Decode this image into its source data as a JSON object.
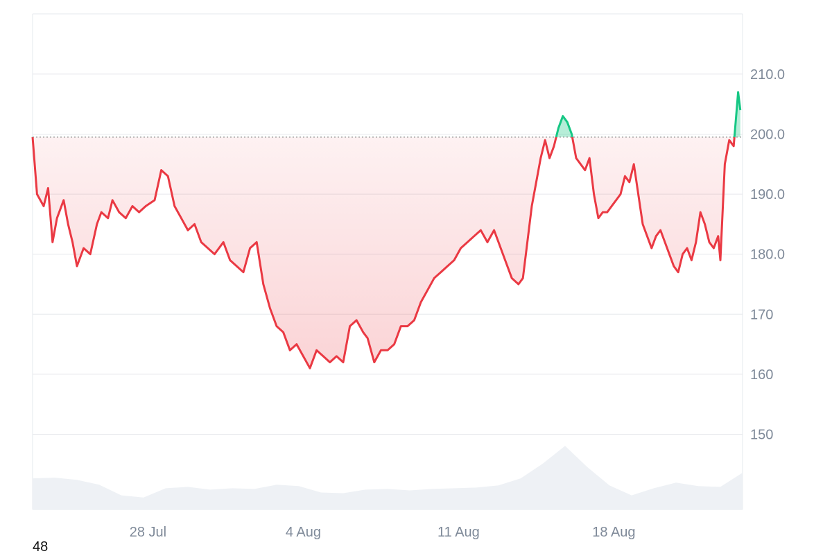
{
  "footer_text": "48",
  "chart_data": {
    "type": "line",
    "title": "",
    "xlabel": "",
    "ylabel": "",
    "ylim": [
      137.5,
      220
    ],
    "y_ticks": [
      210,
      200,
      190,
      180,
      170,
      160,
      150
    ],
    "y_tick_labels": [
      "210.0",
      "200.0",
      "190.0",
      "180.0",
      "170",
      "160",
      "150"
    ],
    "x_range": [
      0,
      31
    ],
    "x_ticks": [
      {
        "x": 5.2,
        "label": "28 Jul"
      },
      {
        "x": 12.2,
        "label": "4 Aug"
      },
      {
        "x": 19.2,
        "label": "11 Aug"
      },
      {
        "x": 26.2,
        "label": "18 Aug"
      }
    ],
    "baseline": 199.5,
    "grid": true,
    "colors": {
      "up": "#16c784",
      "down": "#ea3943",
      "grid": "#e6e8ec",
      "volume": "#eef1f5",
      "baseline": "#7a7a7a",
      "tick_text": "#7f8a99"
    },
    "series": [
      {
        "values": [
          [
            0.0,
            199.5
          ],
          [
            0.2,
            190
          ],
          [
            0.5,
            188
          ],
          [
            0.7,
            191
          ],
          [
            0.9,
            182
          ],
          [
            1.1,
            186
          ],
          [
            1.4,
            189
          ],
          [
            1.6,
            185
          ],
          [
            1.8,
            182
          ],
          [
            2.0,
            178
          ],
          [
            2.3,
            181
          ],
          [
            2.6,
            180
          ],
          [
            2.9,
            185
          ],
          [
            3.1,
            187
          ],
          [
            3.4,
            186
          ],
          [
            3.6,
            189
          ],
          [
            3.9,
            187
          ],
          [
            4.2,
            186
          ],
          [
            4.5,
            188
          ],
          [
            4.8,
            187
          ],
          [
            5.1,
            188
          ],
          [
            5.5,
            189
          ],
          [
            5.8,
            194
          ],
          [
            6.1,
            193
          ],
          [
            6.4,
            188
          ],
          [
            6.7,
            186
          ],
          [
            7.0,
            184
          ],
          [
            7.3,
            185
          ],
          [
            7.6,
            182
          ],
          [
            7.9,
            181
          ],
          [
            8.2,
            180
          ],
          [
            8.6,
            182
          ],
          [
            8.9,
            179
          ],
          [
            9.2,
            178
          ],
          [
            9.5,
            177
          ],
          [
            9.8,
            181
          ],
          [
            10.1,
            182
          ],
          [
            10.4,
            175
          ],
          [
            10.7,
            171
          ],
          [
            11.0,
            168
          ],
          [
            11.3,
            167
          ],
          [
            11.6,
            164
          ],
          [
            11.9,
            165
          ],
          [
            12.2,
            163
          ],
          [
            12.5,
            161
          ],
          [
            12.8,
            164
          ],
          [
            13.1,
            163
          ],
          [
            13.4,
            162
          ],
          [
            13.7,
            163
          ],
          [
            14.0,
            162
          ],
          [
            14.3,
            168
          ],
          [
            14.6,
            169
          ],
          [
            14.9,
            167
          ],
          [
            15.1,
            166
          ],
          [
            15.4,
            162
          ],
          [
            15.7,
            164
          ],
          [
            16.0,
            164
          ],
          [
            16.3,
            165
          ],
          [
            16.6,
            168
          ],
          [
            16.9,
            168
          ],
          [
            17.2,
            169
          ],
          [
            17.5,
            172
          ],
          [
            17.8,
            174
          ],
          [
            18.1,
            176
          ],
          [
            18.4,
            177
          ],
          [
            18.7,
            178
          ],
          [
            19.0,
            179
          ],
          [
            19.3,
            181
          ],
          [
            19.6,
            182
          ],
          [
            19.9,
            183
          ],
          [
            20.2,
            184
          ],
          [
            20.5,
            182
          ],
          [
            20.8,
            184
          ],
          [
            21.0,
            182
          ],
          [
            21.3,
            179
          ],
          [
            21.6,
            176
          ],
          [
            21.9,
            175
          ],
          [
            22.1,
            176
          ],
          [
            22.3,
            182
          ],
          [
            22.5,
            188
          ],
          [
            22.7,
            192
          ],
          [
            22.9,
            196
          ],
          [
            23.1,
            199
          ],
          [
            23.3,
            196
          ],
          [
            23.5,
            198
          ],
          [
            23.7,
            201
          ],
          [
            23.9,
            203
          ],
          [
            24.1,
            202
          ],
          [
            24.3,
            200
          ],
          [
            24.5,
            196
          ],
          [
            24.7,
            195
          ],
          [
            24.9,
            194
          ],
          [
            25.1,
            196
          ],
          [
            25.3,
            190
          ],
          [
            25.5,
            186
          ],
          [
            25.7,
            187
          ],
          [
            25.9,
            187
          ],
          [
            26.1,
            188
          ],
          [
            26.3,
            189
          ],
          [
            26.5,
            190
          ],
          [
            26.7,
            193
          ],
          [
            26.9,
            192
          ],
          [
            27.1,
            195
          ],
          [
            27.3,
            190
          ],
          [
            27.5,
            185
          ],
          [
            27.7,
            183
          ],
          [
            27.9,
            181
          ],
          [
            28.1,
            183
          ],
          [
            28.3,
            184
          ],
          [
            28.5,
            182
          ],
          [
            28.7,
            180
          ],
          [
            28.9,
            178
          ],
          [
            29.1,
            177
          ],
          [
            29.3,
            180
          ],
          [
            29.5,
            181
          ],
          [
            29.7,
            179
          ],
          [
            29.9,
            182
          ],
          [
            30.1,
            187
          ],
          [
            30.3,
            185
          ],
          [
            30.5,
            182
          ],
          [
            30.7,
            181
          ],
          [
            30.9,
            183
          ],
          [
            31.0,
            179
          ],
          [
            31.2,
            195
          ],
          [
            31.4,
            199
          ],
          [
            31.6,
            198
          ],
          [
            31.8,
            207
          ],
          [
            31.9,
            204
          ]
        ]
      }
    ],
    "volume": [
      [
        0,
        0.44
      ],
      [
        1,
        0.45
      ],
      [
        2,
        0.42
      ],
      [
        3,
        0.35
      ],
      [
        4,
        0.2
      ],
      [
        5,
        0.17
      ],
      [
        6,
        0.3
      ],
      [
        7,
        0.32
      ],
      [
        8,
        0.28
      ],
      [
        9,
        0.3
      ],
      [
        10,
        0.29
      ],
      [
        11,
        0.35
      ],
      [
        12,
        0.33
      ],
      [
        13,
        0.24
      ],
      [
        14,
        0.23
      ],
      [
        15,
        0.28
      ],
      [
        16,
        0.29
      ],
      [
        17,
        0.27
      ],
      [
        18,
        0.29
      ],
      [
        19,
        0.3
      ],
      [
        20,
        0.31
      ],
      [
        21,
        0.34
      ],
      [
        22,
        0.44
      ],
      [
        23,
        0.65
      ],
      [
        24,
        0.9
      ],
      [
        25,
        0.6
      ],
      [
        26,
        0.34
      ],
      [
        27,
        0.2
      ],
      [
        28,
        0.3
      ],
      [
        29,
        0.38
      ],
      [
        30,
        0.33
      ],
      [
        31,
        0.32
      ],
      [
        32,
        0.52
      ],
      [
        33,
        0.68
      ]
    ]
  }
}
